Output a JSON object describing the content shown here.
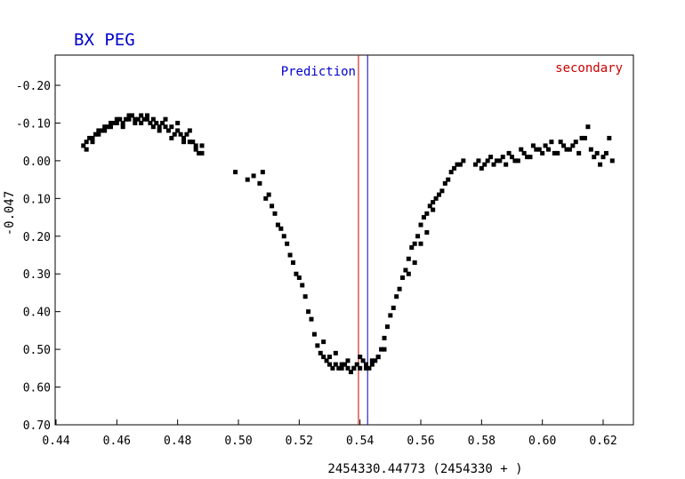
{
  "chart_data": {
    "type": "scatter",
    "title": "BX PEG",
    "xlabel": "2454330.44773 (2454330 + )",
    "ylabel": "-0.047",
    "xlim": [
      0.44,
      0.63
    ],
    "ylim": [
      0.7,
      -0.28
    ],
    "y_inverted": true,
    "grid": false,
    "x_ticks": [
      0.44,
      0.46,
      0.48,
      0.5,
      0.52,
      0.54,
      0.56,
      0.58,
      0.6,
      0.62
    ],
    "x_tick_labels": [
      "0.44",
      "0.46",
      "0.48",
      "0.50",
      "0.52",
      "0.54",
      "0.56",
      "0.58",
      "0.60",
      "0.62"
    ],
    "y_ticks": [
      -0.2,
      -0.1,
      0.0,
      0.1,
      0.2,
      0.3,
      0.4,
      0.5,
      0.6,
      0.7
    ],
    "y_tick_labels": [
      "-0.20",
      "-0.10",
      "0.00",
      "0.10",
      "0.20",
      "0.30",
      "0.40",
      "0.50",
      "0.60",
      "0.70"
    ],
    "vlines": [
      {
        "label": "secondary",
        "x": 0.5395,
        "color": "#cc0000"
      },
      {
        "label": "Prediction",
        "x": 0.5425,
        "color": "#0000cc"
      }
    ],
    "marker_color": "#000000",
    "series": [
      {
        "x": [
          0.449,
          0.45,
          0.451,
          0.452,
          0.453,
          0.454,
          0.455,
          0.456,
          0.457,
          0.458,
          0.459,
          0.46,
          0.461,
          0.462,
          0.463,
          0.464,
          0.465,
          0.466,
          0.467,
          0.468,
          0.469,
          0.47,
          0.471,
          0.472,
          0.473,
          0.474,
          0.475,
          0.476,
          0.477,
          0.478,
          0.479,
          0.48,
          0.481,
          0.482,
          0.483,
          0.484,
          0.485,
          0.486,
          0.487,
          0.488,
          0.45,
          0.452,
          0.454,
          0.456,
          0.458,
          0.46,
          0.462,
          0.464,
          0.466,
          0.468,
          0.47,
          0.472,
          0.474,
          0.476,
          0.478,
          0.48,
          0.482,
          0.484,
          0.486,
          0.488,
          0.499,
          0.503,
          0.505,
          0.507,
          0.508,
          0.509,
          0.51,
          0.511,
          0.512,
          0.513,
          0.514,
          0.515,
          0.516,
          0.517,
          0.518,
          0.519,
          0.52,
          0.521,
          0.522,
          0.523,
          0.524,
          0.525,
          0.526,
          0.527,
          0.528,
          0.529,
          0.53,
          0.531,
          0.532,
          0.533,
          0.534,
          0.535,
          0.536,
          0.537,
          0.538,
          0.539,
          0.54,
          0.541,
          0.542,
          0.543,
          0.544,
          0.545,
          0.546,
          0.547,
          0.548,
          0.549,
          0.55,
          0.551,
          0.552,
          0.553,
          0.554,
          0.555,
          0.556,
          0.557,
          0.558,
          0.559,
          0.56,
          0.561,
          0.562,
          0.563,
          0.564,
          0.565,
          0.566,
          0.567,
          0.568,
          0.569,
          0.57,
          0.571,
          0.572,
          0.573,
          0.574,
          0.528,
          0.53,
          0.532,
          0.534,
          0.536,
          0.538,
          0.54,
          0.542,
          0.544,
          0.546,
          0.548,
          0.556,
          0.558,
          0.56,
          0.562,
          0.564,
          0.578,
          0.58,
          0.582,
          0.584,
          0.586,
          0.588,
          0.59,
          0.592,
          0.594,
          0.596,
          0.598,
          0.6,
          0.602,
          0.604,
          0.606,
          0.608,
          0.61,
          0.612,
          0.614,
          0.616,
          0.618,
          0.62,
          0.622,
          0.579,
          0.581,
          0.583,
          0.585,
          0.587,
          0.589,
          0.591,
          0.593,
          0.595,
          0.597,
          0.599,
          0.601,
          0.603,
          0.605,
          0.607,
          0.609,
          0.611,
          0.613,
          0.615,
          0.617,
          0.619,
          0.621,
          0.623
        ],
        "y": [
          -0.04,
          -0.05,
          -0.06,
          -0.06,
          -0.07,
          -0.08,
          -0.08,
          -0.09,
          -0.09,
          -0.1,
          -0.1,
          -0.1,
          -0.11,
          -0.1,
          -0.11,
          -0.11,
          -0.12,
          -0.11,
          -0.11,
          -0.12,
          -0.11,
          -0.11,
          -0.1,
          -0.11,
          -0.1,
          -0.09,
          -0.1,
          -0.09,
          -0.08,
          -0.09,
          -0.07,
          -0.08,
          -0.07,
          -0.06,
          -0.07,
          -0.05,
          -0.05,
          -0.03,
          -0.02,
          -0.04,
          -0.03,
          -0.05,
          -0.07,
          -0.08,
          -0.09,
          -0.11,
          -0.09,
          -0.12,
          -0.1,
          -0.1,
          -0.12,
          -0.09,
          -0.08,
          -0.11,
          -0.06,
          -0.1,
          -0.05,
          -0.08,
          -0.04,
          -0.02,
          0.03,
          0.05,
          0.04,
          0.06,
          0.03,
          0.1,
          0.09,
          0.12,
          0.14,
          0.17,
          0.18,
          0.2,
          0.22,
          0.25,
          0.27,
          0.3,
          0.31,
          0.33,
          0.36,
          0.4,
          0.42,
          0.46,
          0.49,
          0.51,
          0.52,
          0.53,
          0.54,
          0.55,
          0.54,
          0.55,
          0.55,
          0.54,
          0.55,
          0.56,
          0.55,
          0.54,
          0.55,
          0.53,
          0.54,
          0.55,
          0.53,
          0.53,
          0.52,
          0.5,
          0.47,
          0.44,
          0.41,
          0.39,
          0.36,
          0.34,
          0.31,
          0.29,
          0.26,
          0.23,
          0.22,
          0.2,
          0.17,
          0.15,
          0.14,
          0.12,
          0.11,
          0.1,
          0.09,
          0.08,
          0.06,
          0.05,
          0.03,
          0.02,
          0.01,
          0.01,
          0.0,
          0.48,
          0.52,
          0.51,
          0.54,
          0.53,
          0.55,
          0.52,
          0.55,
          0.54,
          0.52,
          0.5,
          0.3,
          0.27,
          0.22,
          0.19,
          0.13,
          0.01,
          0.02,
          0.0,
          0.01,
          0.0,
          0.01,
          -0.01,
          0.0,
          -0.02,
          -0.01,
          -0.03,
          -0.02,
          -0.03,
          -0.02,
          -0.05,
          -0.03,
          -0.04,
          -0.02,
          -0.06,
          -0.03,
          -0.02,
          -0.01,
          -0.06,
          0.0,
          0.01,
          -0.01,
          0.0,
          -0.01,
          -0.02,
          0.0,
          -0.03,
          -0.01,
          -0.04,
          -0.03,
          -0.04,
          -0.05,
          -0.02,
          -0.04,
          -0.03,
          -0.05,
          -0.06,
          -0.09,
          -0.01,
          0.01,
          -0.02,
          0.0
        ]
      }
    ]
  }
}
